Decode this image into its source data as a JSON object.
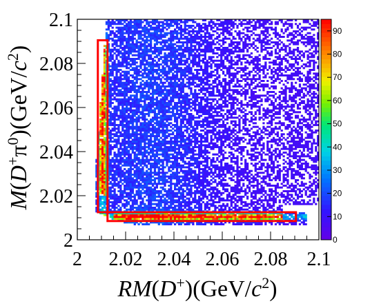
{
  "chart_data": {
    "type": "heatmap",
    "title": "",
    "xlabel_parts": [
      "RM",
      "(",
      "D",
      "+",
      ")(GeV/",
      "c",
      "2",
      ")"
    ],
    "ylabel_parts": [
      "M",
      "(",
      "D",
      "+",
      "π",
      "0",
      ")(GeV/",
      "c",
      "2",
      ")"
    ],
    "xlim": [
      2.0,
      2.1
    ],
    "ylim": [
      2.0,
      2.1
    ],
    "x_ticks": [
      2.0,
      2.02,
      2.04,
      2.06,
      2.08,
      2.1
    ],
    "x_tick_labels": [
      "2",
      "2.02",
      "2.04",
      "2.06",
      "2.08",
      "2.1"
    ],
    "y_ticks": [
      2.0,
      2.02,
      2.04,
      2.06,
      2.08,
      2.1
    ],
    "y_tick_labels": [
      "2",
      "2.02",
      "2.04",
      "2.06",
      "2.08",
      "2.1"
    ],
    "z_range": [
      0,
      95
    ],
    "z_ticks": [
      0,
      10,
      20,
      30,
      40,
      50,
      60,
      70,
      80,
      90
    ],
    "z_tick_labels": [
      "0",
      "10",
      "20",
      "30",
      "40",
      "50",
      "60",
      "70",
      "80",
      "90"
    ],
    "bins": [
      120,
      120
    ],
    "signal_boxes": [
      {
        "name": "vertical-band",
        "x": [
          2.0085,
          2.0125
        ],
        "y": [
          2.0125,
          2.0905
        ]
      },
      {
        "name": "horizontal-band",
        "x": [
          2.0125,
          2.0905
        ],
        "y": [
          2.0085,
          2.0125
        ]
      }
    ],
    "colors": {
      "box": "#ff0000",
      "palette": "rainbow"
    },
    "grid": false
  }
}
